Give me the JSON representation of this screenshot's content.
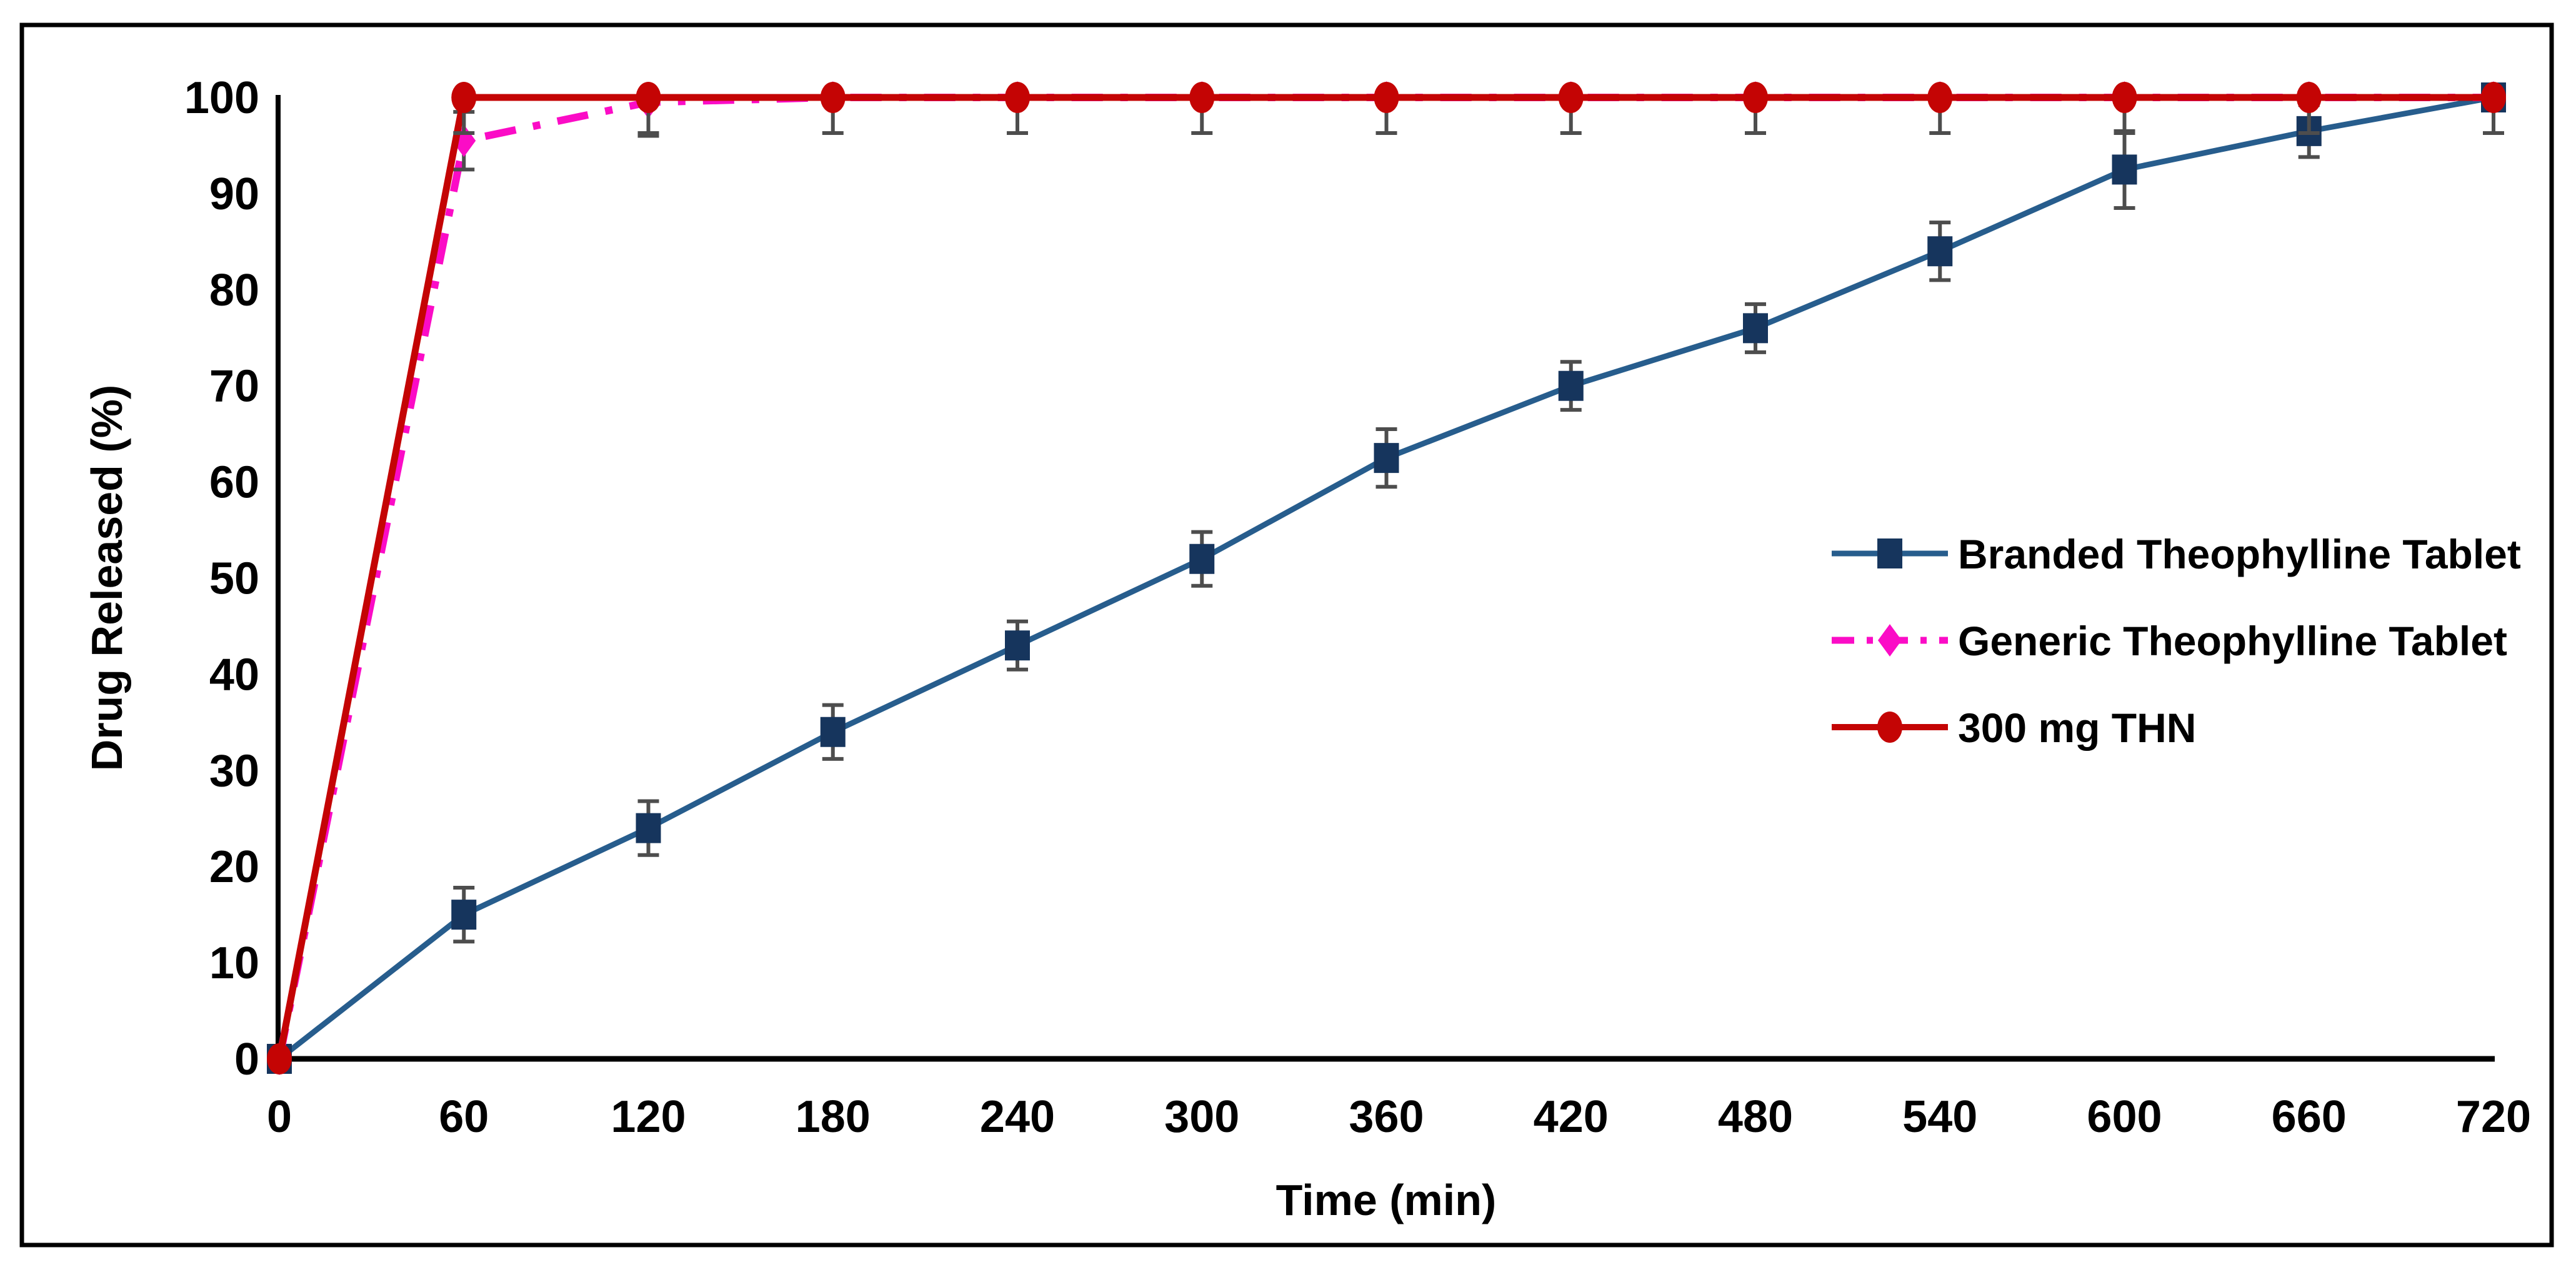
{
  "figure": {
    "kind": "dissolution-profile-line-chart",
    "background": "#ffffff",
    "border_color": "#000000"
  },
  "axes": {
    "x": {
      "label": "Time (min)",
      "min": 0,
      "max": 720,
      "tick_step": 60
    },
    "y": {
      "label": "Drug Released (%)",
      "min": 0,
      "max": 100,
      "tick_step": 10
    }
  },
  "legend": {
    "position": "middle-right",
    "entries": [
      {
        "label": "Branded Theophylline Tablet",
        "series_index": 0
      },
      {
        "label": "Generic Theophylline Tablet",
        "series_index": 1
      },
      {
        "label": "300 mg THN",
        "series_index": 2
      }
    ]
  },
  "chart_data": {
    "type": "line",
    "title": "",
    "xlabel": "Time (min)",
    "ylabel": "Drug Released (%)",
    "xlim": [
      0,
      720
    ],
    "ylim": [
      0,
      100
    ],
    "x_ticks": [
      0,
      60,
      120,
      180,
      240,
      300,
      360,
      420,
      480,
      540,
      600,
      660,
      720
    ],
    "y_ticks": [
      0,
      10,
      20,
      30,
      40,
      50,
      60,
      70,
      80,
      90,
      100
    ],
    "grid": false,
    "error_bar_color": "#4d4d4d",
    "x": [
      0,
      60,
      120,
      180,
      240,
      300,
      360,
      420,
      480,
      540,
      600,
      660,
      720
    ],
    "series": [
      {
        "name": "Branded Theophylline Tablet",
        "values": [
          0,
          15,
          24,
          34,
          43,
          52,
          62.5,
          70,
          76,
          84,
          92.5,
          96.5,
          100
        ],
        "err_up": [
          0,
          2.8,
          2.8,
          2.8,
          2.5,
          2.8,
          3,
          2.5,
          2.5,
          3,
          4,
          2.7,
          0
        ],
        "err_down": [
          0,
          2.8,
          2.8,
          2.8,
          2.5,
          2.8,
          3,
          2.5,
          2.5,
          3,
          4,
          2.7,
          0
        ],
        "color": "#275d8d",
        "line_width": 9,
        "line_style": "solid",
        "marker": "square",
        "marker_color": "#16355d"
      },
      {
        "name": "Generic Theophylline Tablet",
        "values": [
          0,
          95.5,
          99.5,
          100,
          100,
          100,
          100,
          100,
          100,
          100,
          100,
          100,
          100
        ],
        "err_up": [
          0,
          3,
          0,
          0,
          0,
          0,
          0,
          0,
          0,
          0,
          0,
          0,
          0
        ],
        "err_down": [
          0,
          3,
          3.5,
          0,
          0,
          0,
          0,
          0,
          0,
          0,
          0,
          0,
          0
        ],
        "color": "#fb0cc6",
        "line_width": 12,
        "line_style": "dash-dot",
        "marker": "diamond",
        "marker_color": "#fb0cc6"
      },
      {
        "name": "300 mg THN",
        "values": [
          0,
          100,
          100,
          100,
          100,
          100,
          100,
          100,
          100,
          100,
          100,
          100,
          100
        ],
        "err_up": [
          0,
          0,
          0,
          0,
          0,
          0,
          0,
          0,
          0,
          0,
          0,
          0,
          0
        ],
        "err_down": [
          0,
          3.7,
          3.7,
          3.7,
          3.7,
          3.7,
          3.7,
          3.7,
          3.7,
          3.7,
          3.7,
          3.7,
          3.7
        ],
        "color": "#c40404",
        "line_width": 11,
        "line_style": "solid",
        "marker": "circle",
        "marker_color": "#c40404"
      }
    ]
  }
}
